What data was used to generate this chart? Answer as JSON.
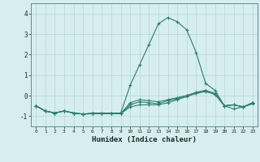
{
  "xlabel": "Humidex (Indice chaleur)",
  "x_values": [
    0,
    1,
    2,
    3,
    4,
    5,
    6,
    7,
    8,
    9,
    10,
    11,
    12,
    13,
    14,
    15,
    16,
    17,
    18,
    19,
    20,
    21,
    22,
    23
  ],
  "lines": [
    [
      -0.5,
      -0.75,
      -0.85,
      -0.75,
      -0.85,
      -0.9,
      -0.85,
      -0.85,
      -0.85,
      -0.85,
      0.5,
      1.5,
      2.5,
      3.5,
      3.8,
      3.6,
      3.2,
      2.1,
      0.6,
      0.25,
      -0.5,
      -0.65,
      -0.55,
      -0.4
    ],
    [
      -0.5,
      -0.75,
      -0.85,
      -0.75,
      -0.85,
      -0.9,
      -0.88,
      -0.88,
      -0.88,
      -0.88,
      -0.35,
      -0.2,
      -0.25,
      -0.3,
      -0.2,
      -0.1,
      0.0,
      0.15,
      0.25,
      0.1,
      -0.5,
      -0.45,
      -0.55,
      -0.35
    ],
    [
      -0.5,
      -0.75,
      -0.85,
      -0.75,
      -0.85,
      -0.9,
      -0.88,
      -0.88,
      -0.88,
      -0.88,
      -0.45,
      -0.3,
      -0.35,
      -0.4,
      -0.25,
      -0.15,
      0.0,
      0.15,
      0.25,
      0.1,
      -0.5,
      -0.45,
      -0.55,
      -0.35
    ],
    [
      -0.5,
      -0.75,
      -0.85,
      -0.75,
      -0.85,
      -0.9,
      -0.88,
      -0.88,
      -0.88,
      -0.88,
      -0.55,
      -0.45,
      -0.45,
      -0.45,
      -0.35,
      -0.2,
      -0.05,
      0.1,
      0.2,
      0.05,
      -0.5,
      -0.45,
      -0.55,
      -0.35
    ]
  ],
  "line_color": "#2e7d6e",
  "bg_color": "#d6eef0",
  "grid_color": "#b5d5da",
  "ylim": [
    -1.5,
    4.5
  ],
  "xlim": [
    -0.5,
    23.5
  ],
  "yticks": [
    -1,
    0,
    1,
    2,
    3,
    4
  ],
  "xticks": [
    0,
    1,
    2,
    3,
    4,
    5,
    6,
    7,
    8,
    9,
    10,
    11,
    12,
    13,
    14,
    15,
    16,
    17,
    18,
    19,
    20,
    21,
    22,
    23
  ]
}
